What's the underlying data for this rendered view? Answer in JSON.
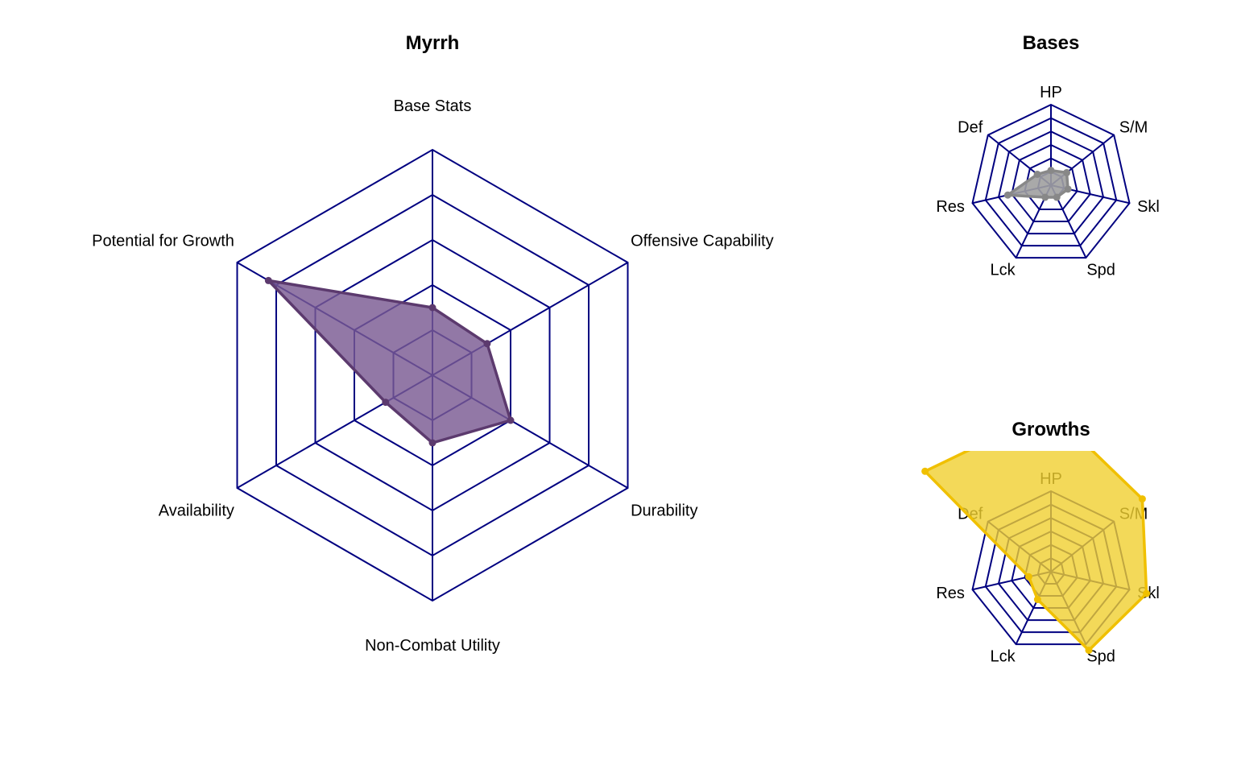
{
  "chart_data": [
    {
      "type": "radar",
      "title": "Myrrh",
      "axes": [
        "Base Stats",
        "Offensive Capability",
        "Durability",
        "Non-Combat Utility",
        "Availability",
        "Potential for Growth"
      ],
      "range": [
        0,
        5
      ],
      "grid_levels": 5,
      "series": [
        {
          "values": [
            1.5,
            1.4,
            2.0,
            1.5,
            1.2,
            4.2
          ],
          "color": "#7a5a93",
          "edge_color": "#5c3a6e"
        }
      ],
      "grid_color": "#000080"
    },
    {
      "type": "radar",
      "title": "Bases",
      "axes": [
        "HP",
        "S/M",
        "Skl",
        "Spd",
        "Lck",
        "Res",
        "Def"
      ],
      "range": [
        0,
        6
      ],
      "grid_levels": 6,
      "series": [
        {
          "values": [
            1.1,
            1.5,
            1.3,
            1.0,
            1.0,
            3.3,
            1.3
          ],
          "color": "#a0a0a0",
          "edge_color": "#888888"
        }
      ],
      "grid_color": "#000080"
    },
    {
      "type": "radar",
      "title": "Growths",
      "axes": [
        "HP",
        "S/M",
        "Skl",
        "Spd",
        "Lck",
        "Res",
        "Def"
      ],
      "range": [
        0,
        6
      ],
      "grid_levels": 6,
      "series": [
        {
          "values": [
            12,
            8.7,
            7.3,
            6.5,
            2.3,
            1.7,
            12
          ],
          "color": "#f0d030",
          "edge_color": "#f0c000"
        }
      ],
      "grid_color": "#000080"
    }
  ]
}
